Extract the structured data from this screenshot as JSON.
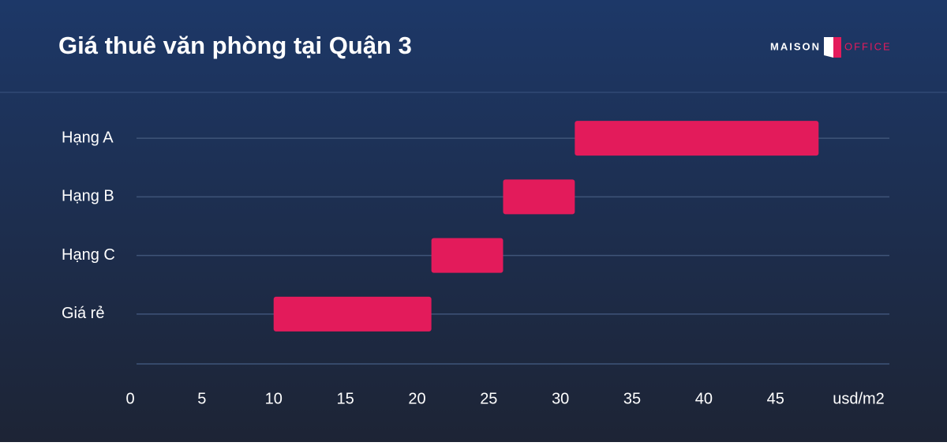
{
  "brand": {
    "left": "MAISON",
    "right": "OFFICE"
  },
  "chart_data": {
    "type": "range-bar",
    "title": "Giá thuê văn phòng tại Quận 3",
    "categories": [
      "Hạng A",
      "Hạng B",
      "Hạng C",
      "Giá rẻ"
    ],
    "low": [
      31,
      26,
      21,
      10
    ],
    "high": [
      48,
      31,
      26,
      21
    ],
    "color": "#e31b5b",
    "xlabel": "usd/m2",
    "xlim": [
      0,
      52
    ],
    "xticks": [
      0,
      5,
      10,
      15,
      20,
      25,
      30,
      35,
      40,
      45
    ],
    "grid": true
  }
}
